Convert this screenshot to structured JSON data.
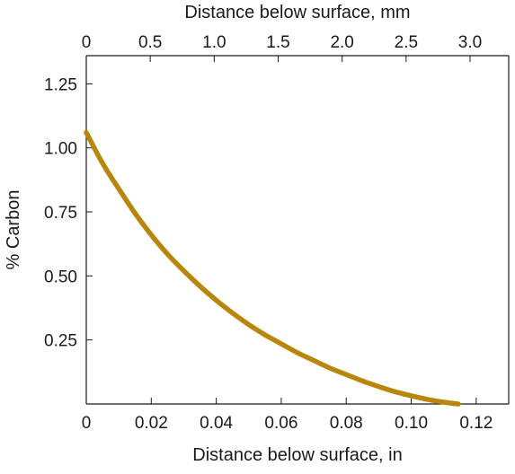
{
  "chart_data": {
    "type": "line",
    "top_axis_label": "Distance below surface, mm",
    "bottom_axis_label": "Distance below surface, in",
    "ylabel": "% Carbon",
    "xlim_in": [
      0,
      0.13
    ],
    "xlim_mm": [
      0,
      3.302
    ],
    "ylim": [
      0,
      1.36
    ],
    "bottom_ticks": [
      {
        "value": 0,
        "label": "0"
      },
      {
        "value": 0.02,
        "label": "0.02"
      },
      {
        "value": 0.04,
        "label": "0.04"
      },
      {
        "value": 0.06,
        "label": "0.06"
      },
      {
        "value": 0.08,
        "label": "0.08"
      },
      {
        "value": 0.1,
        "label": "0.10"
      },
      {
        "value": 0.12,
        "label": "0.12"
      }
    ],
    "top_ticks": [
      {
        "value": 0,
        "label": "0"
      },
      {
        "value": 0.5,
        "label": "0.5"
      },
      {
        "value": 1.0,
        "label": "1.0"
      },
      {
        "value": 1.5,
        "label": "1.5"
      },
      {
        "value": 2.0,
        "label": "2.0"
      },
      {
        "value": 2.5,
        "label": "2.5"
      },
      {
        "value": 3.0,
        "label": "3.0"
      }
    ],
    "y_ticks": [
      {
        "value": 0.25,
        "label": "0.25"
      },
      {
        "value": 0.5,
        "label": "0.50"
      },
      {
        "value": 0.75,
        "label": "0.75"
      },
      {
        "value": 1.0,
        "label": "1.00"
      },
      {
        "value": 1.25,
        "label": "1.25"
      }
    ],
    "grid": false,
    "series": [
      {
        "color": "#b8860b",
        "x": [
          0,
          0.005,
          0.01,
          0.015,
          0.02,
          0.025,
          0.03,
          0.035,
          0.04,
          0.045,
          0.05,
          0.055,
          0.06,
          0.065,
          0.07,
          0.075,
          0.08,
          0.085,
          0.09,
          0.095,
          0.1,
          0.105,
          0.11,
          0.1145
        ],
        "y": [
          1.06,
          0.94,
          0.84,
          0.745,
          0.66,
          0.585,
          0.52,
          0.46,
          0.405,
          0.355,
          0.31,
          0.27,
          0.235,
          0.2,
          0.17,
          0.14,
          0.115,
          0.09,
          0.068,
          0.048,
          0.032,
          0.018,
          0.007,
          0.0
        ]
      }
    ]
  }
}
